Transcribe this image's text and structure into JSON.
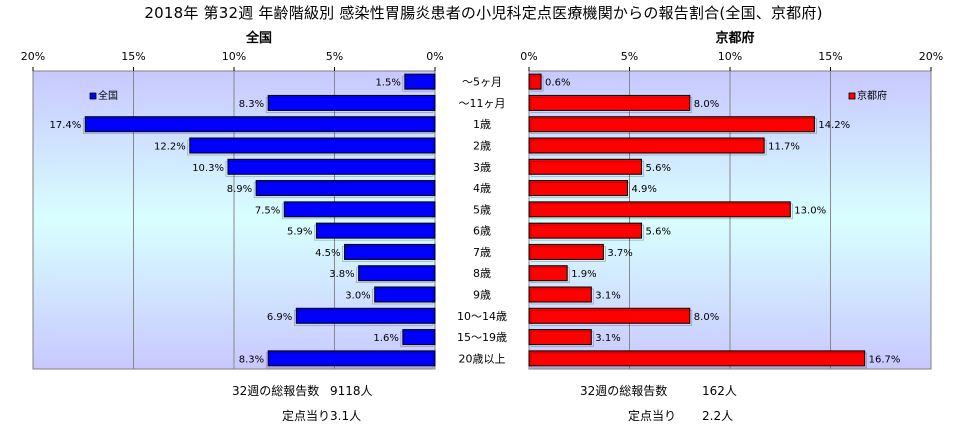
{
  "title": "2018年 第32週 年齢階級別 感染性胃腸炎患者の小児科定点医療機関からの報告割合(全国、京都府)",
  "colors": {
    "national": "#0000ff",
    "kyoto": "#ff0000",
    "plot_bg_top": "#c8c8ff",
    "plot_bg_mid": "#d8ffff",
    "plot_bg_bottom": "#c8c8ff"
  },
  "chart_data": [
    {
      "type": "bar",
      "orientation": "horizontal",
      "panel": "left",
      "title": "全国",
      "legend": "全国",
      "legend_position": "top-left",
      "xlim": [
        0,
        20
      ],
      "x_reversed": true,
      "ticks": [
        "20%",
        "15%",
        "10%",
        "5%",
        "0%"
      ],
      "categories": [
        "～5ヶ月",
        "～11ヶ月",
        "1歳",
        "2歳",
        "3歳",
        "4歳",
        "5歳",
        "6歳",
        "7歳",
        "8歳",
        "9歳",
        "10～14歳",
        "15～19歳",
        "20歳以上"
      ],
      "values": [
        1.5,
        8.3,
        17.4,
        12.2,
        10.3,
        8.9,
        7.5,
        5.9,
        4.5,
        3.8,
        3.0,
        6.9,
        1.6,
        8.3
      ],
      "labels": [
        "1.5%",
        "8.3%",
        "17.4%",
        "12.2%",
        "10.3%",
        "8.9%",
        "7.5%",
        "5.9%",
        "4.5%",
        "3.8%",
        "3.0%",
        "6.9%",
        "1.6%",
        "8.3%"
      ]
    },
    {
      "type": "bar",
      "orientation": "horizontal",
      "panel": "right",
      "title": "京都府",
      "legend": "京都府",
      "legend_position": "top-right",
      "xlim": [
        0,
        20
      ],
      "ticks": [
        "0%",
        "5%",
        "10%",
        "15%",
        "20%"
      ],
      "categories": [
        "～5ヶ月",
        "～11ヶ月",
        "1歳",
        "2歳",
        "3歳",
        "4歳",
        "5歳",
        "6歳",
        "7歳",
        "8歳",
        "9歳",
        "10～14歳",
        "15～19歳",
        "20歳以上"
      ],
      "values": [
        0.6,
        8.0,
        14.2,
        11.7,
        5.6,
        4.9,
        13.0,
        5.6,
        3.7,
        1.9,
        3.1,
        8.0,
        3.1,
        16.7
      ],
      "labels": [
        "0.6%",
        "8.0%",
        "14.2%",
        "11.7%",
        "5.6%",
        "4.9%",
        "13.0%",
        "5.6%",
        "3.7%",
        "1.9%",
        "3.1%",
        "8.0%",
        "3.1%",
        "16.7%"
      ]
    }
  ],
  "footer": {
    "national_total_label": "32週の総報告数",
    "national_total_value": "9118人",
    "national_per_label": "定点当り",
    "national_per_value": "3.1人",
    "kyoto_total_label": "32週の総報告数",
    "kyoto_total_value": "162人",
    "kyoto_per_label": "定点当り",
    "kyoto_per_value": "2.2人"
  }
}
